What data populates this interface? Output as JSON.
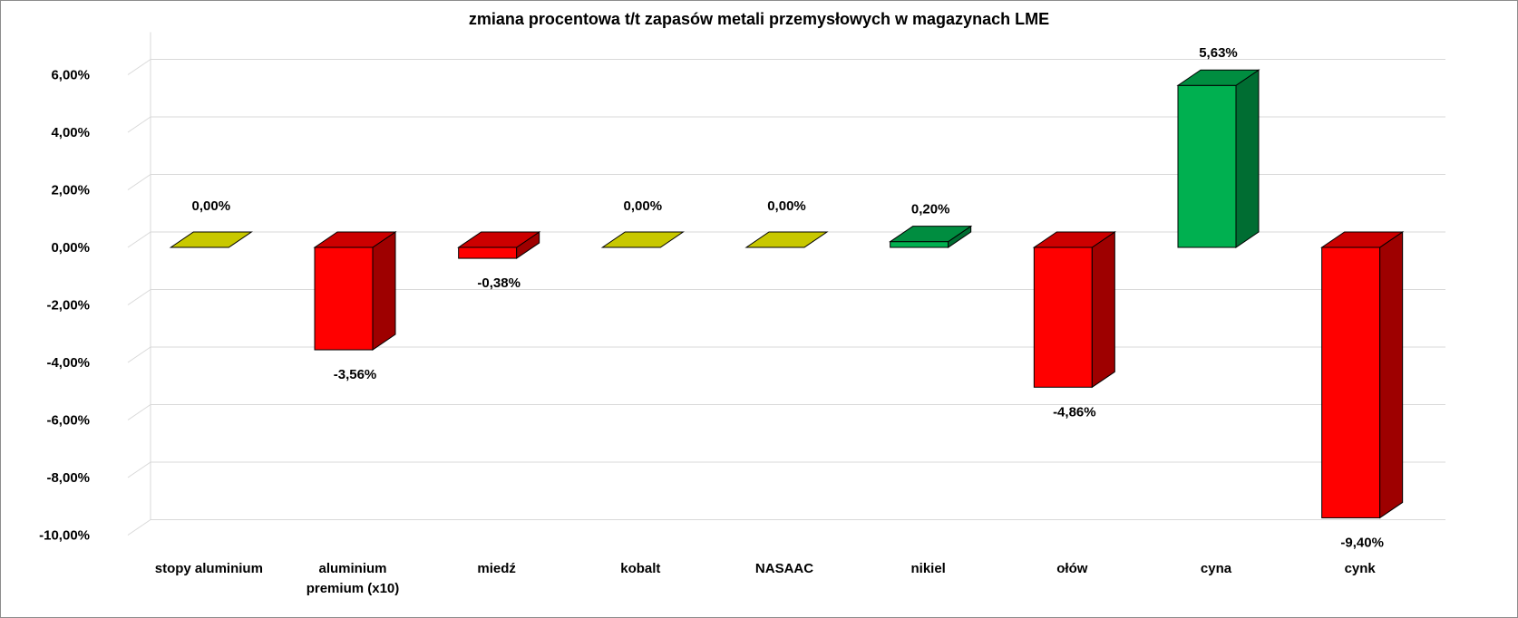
{
  "chart_data": {
    "type": "bar",
    "title": "zmiana procentowa t/t zapasów metali przemysłowych w magazynach LME",
    "xlabel": "",
    "ylabel": "",
    "ylim": [
      -10,
      6
    ],
    "yticks": [
      6,
      4,
      2,
      0,
      -2,
      -4,
      -6,
      -8,
      -10
    ],
    "ytick_labels": [
      "6,00%",
      "4,00%",
      "2,00%",
      "0,00%",
      "-2,00%",
      "-4,00%",
      "-6,00%",
      "-8,00%",
      "-10,00%"
    ],
    "grid": true,
    "three_d": true,
    "legend": "none",
    "categories": [
      [
        "stopy aluminium"
      ],
      [
        "aluminium",
        "premium (x10)"
      ],
      [
        "miedź"
      ],
      [
        "kobalt"
      ],
      [
        "NASAAC"
      ],
      [
        "nikiel"
      ],
      [
        "ołów"
      ],
      [
        "cyna"
      ],
      [
        "cynk"
      ]
    ],
    "values": [
      0.0,
      -3.56,
      -0.38,
      0.0,
      0.0,
      0.2,
      -4.86,
      5.63,
      -9.4
    ],
    "data_labels": [
      "0,00%",
      "-3,56%",
      "-0,38%",
      "0,00%",
      "0,00%",
      "0,20%",
      "-4,86%",
      "5,63%",
      "-9,40%"
    ],
    "colors": {
      "positive": "#00B050",
      "negative": "#FF0000",
      "zero": "#C8C800",
      "grid": "#D9D9D9"
    }
  }
}
